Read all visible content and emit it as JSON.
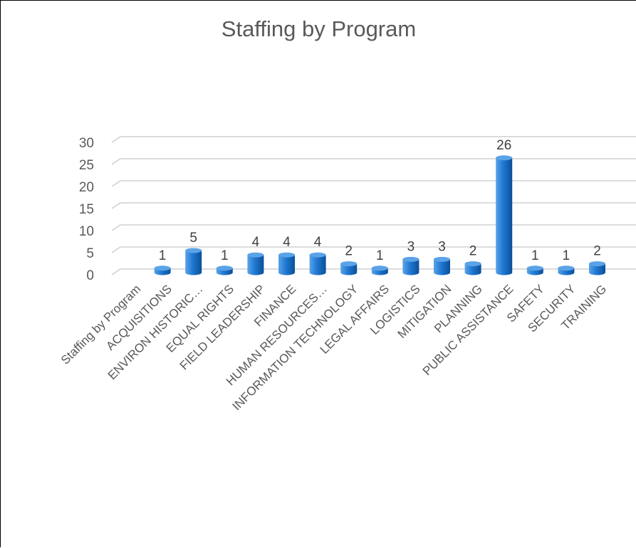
{
  "chart_data": {
    "type": "bar",
    "title": "Staffing by Program",
    "xlabel": "",
    "ylabel": "",
    "categories": [
      "Staffing by Program",
      "ACQUISITIONS",
      "ENVIRON HISTORIC…",
      "EQUAL RIGHTS",
      "FIELD LEADERSHIP",
      "FINANCE",
      "HUMAN RESOURCES…",
      "INFORMATION TECHNOLOGY",
      "LEGAL AFFAIRS",
      "LOGISTICS",
      "MITIGATION",
      "PLANNING",
      "PUBLIC ASSISTANCE",
      "SAFETY",
      "SECURITY",
      "TRAINING"
    ],
    "values": [
      null,
      1,
      5,
      1,
      4,
      4,
      4,
      2,
      1,
      3,
      3,
      2,
      26,
      1,
      1,
      2
    ],
    "data_labels": [
      "",
      "1",
      "5",
      "1",
      "4",
      "4",
      "4",
      "2",
      "1",
      "3",
      "3",
      "2",
      "26",
      "1",
      "1",
      "2"
    ],
    "yticks": [
      "0",
      "5",
      "10",
      "15",
      "20",
      "25",
      "30"
    ],
    "ylim": [
      0,
      30
    ],
    "grid": true,
    "legend": "none",
    "bar_style": "3d-cylinder",
    "colors": {
      "bar_light": "#5ba3e8",
      "bar_mid": "#1f78d1",
      "bar_dark": "#0b4f99",
      "gridline": "#d0d0d0",
      "text": "#595959"
    }
  }
}
